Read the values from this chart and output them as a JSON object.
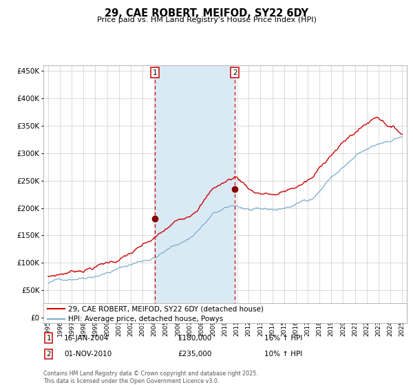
{
  "title": "29, CAE ROBERT, MEIFOD, SY22 6DY",
  "subtitle": "Price paid vs. HM Land Registry's House Price Index (HPI)",
  "legend_line1": "29, CAE ROBERT, MEIFOD, SY22 6DY (detached house)",
  "legend_line2": "HPI: Average price, detached house, Powys",
  "annotation1_label": "1",
  "annotation1_date": "16-JAN-2004",
  "annotation1_price": "£180,000",
  "annotation1_hpi": "16% ↑ HPI",
  "annotation2_label": "2",
  "annotation2_date": "01-NOV-2010",
  "annotation2_price": "£235,000",
  "annotation2_hpi": "10% ↑ HPI",
  "footnote": "Contains HM Land Registry data © Crown copyright and database right 2025.\nThis data is licensed under the Open Government Licence v3.0.",
  "hpi_color": "#7aabcc",
  "price_color": "#cc0000",
  "vline_color": "#cc0000",
  "shade_color": "#daeaf5",
  "dot_color": "#880000",
  "grid_color": "#cccccc",
  "background_color": "#ffffff",
  "ylim": [
    0,
    460000
  ],
  "yticks": [
    0,
    50000,
    100000,
    150000,
    200000,
    250000,
    300000,
    350000,
    400000,
    450000
  ],
  "x_start_year": 1995,
  "x_end_year": 2025,
  "sale1_year": 2004.04,
  "sale2_year": 2010.83,
  "sale1_price": 180000,
  "sale2_price": 235000
}
